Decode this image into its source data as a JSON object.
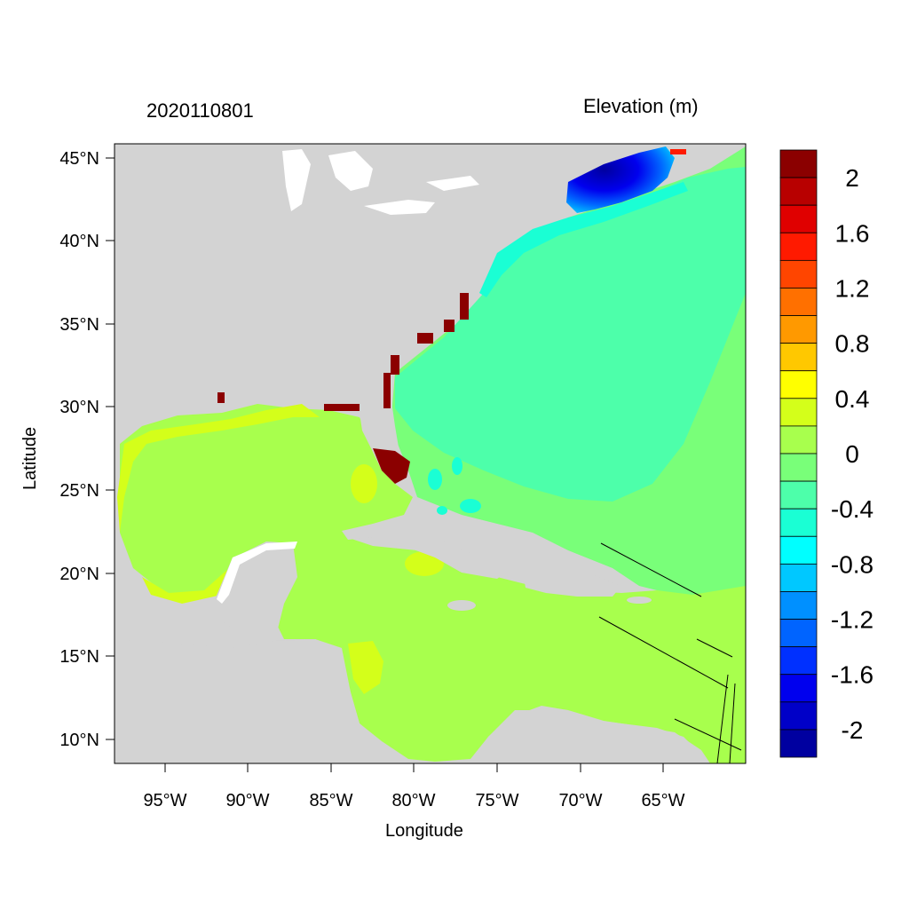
{
  "header": {
    "date_label": "2020110801",
    "variable_label": "Elevation (m)"
  },
  "axes": {
    "xlabel": "Longitude",
    "ylabel": "Latitude",
    "x_ticks": [
      "95°W",
      "90°W",
      "85°W",
      "80°W",
      "75°W",
      "70°W",
      "65°W"
    ],
    "y_ticks": [
      "45°N",
      "40°N",
      "35°N",
      "30°N",
      "25°N",
      "20°N",
      "15°N",
      "10°N"
    ],
    "lon_range": [
      -98,
      -60
    ],
    "lat_range": [
      8.5,
      46
    ]
  },
  "colorbar": {
    "labels": [
      "2",
      "1.6",
      "1.2",
      "0.8",
      "0.4",
      "0",
      "-0.4",
      "-0.8",
      "-1.2",
      "-1.6",
      "-2"
    ],
    "colors": [
      "#8b0000",
      "#b80000",
      "#e00000",
      "#ff1a00",
      "#ff4500",
      "#ff7000",
      "#ff9900",
      "#ffc800",
      "#ffff00",
      "#d4ff1a",
      "#a8ff4d",
      "#79ff79",
      "#4dffaa",
      "#1affd4",
      "#00ffff",
      "#00c8ff",
      "#0090ff",
      "#0064ff",
      "#0030ff",
      "#0000ee",
      "#0000c8",
      "#0000a0"
    ]
  },
  "colors": {
    "land": "#d3d3d3",
    "ocean_atlantic": "#4dffaa",
    "ocean_outer": "#79ff79",
    "gulf": "#a8ff4d",
    "gulf_coastal": "#d4ff1a",
    "coastal_cyan": "#1affd4",
    "maine_deep": "#0000c8",
    "florida_high": "#8b0000",
    "water_lakes": "#ffffff"
  }
}
